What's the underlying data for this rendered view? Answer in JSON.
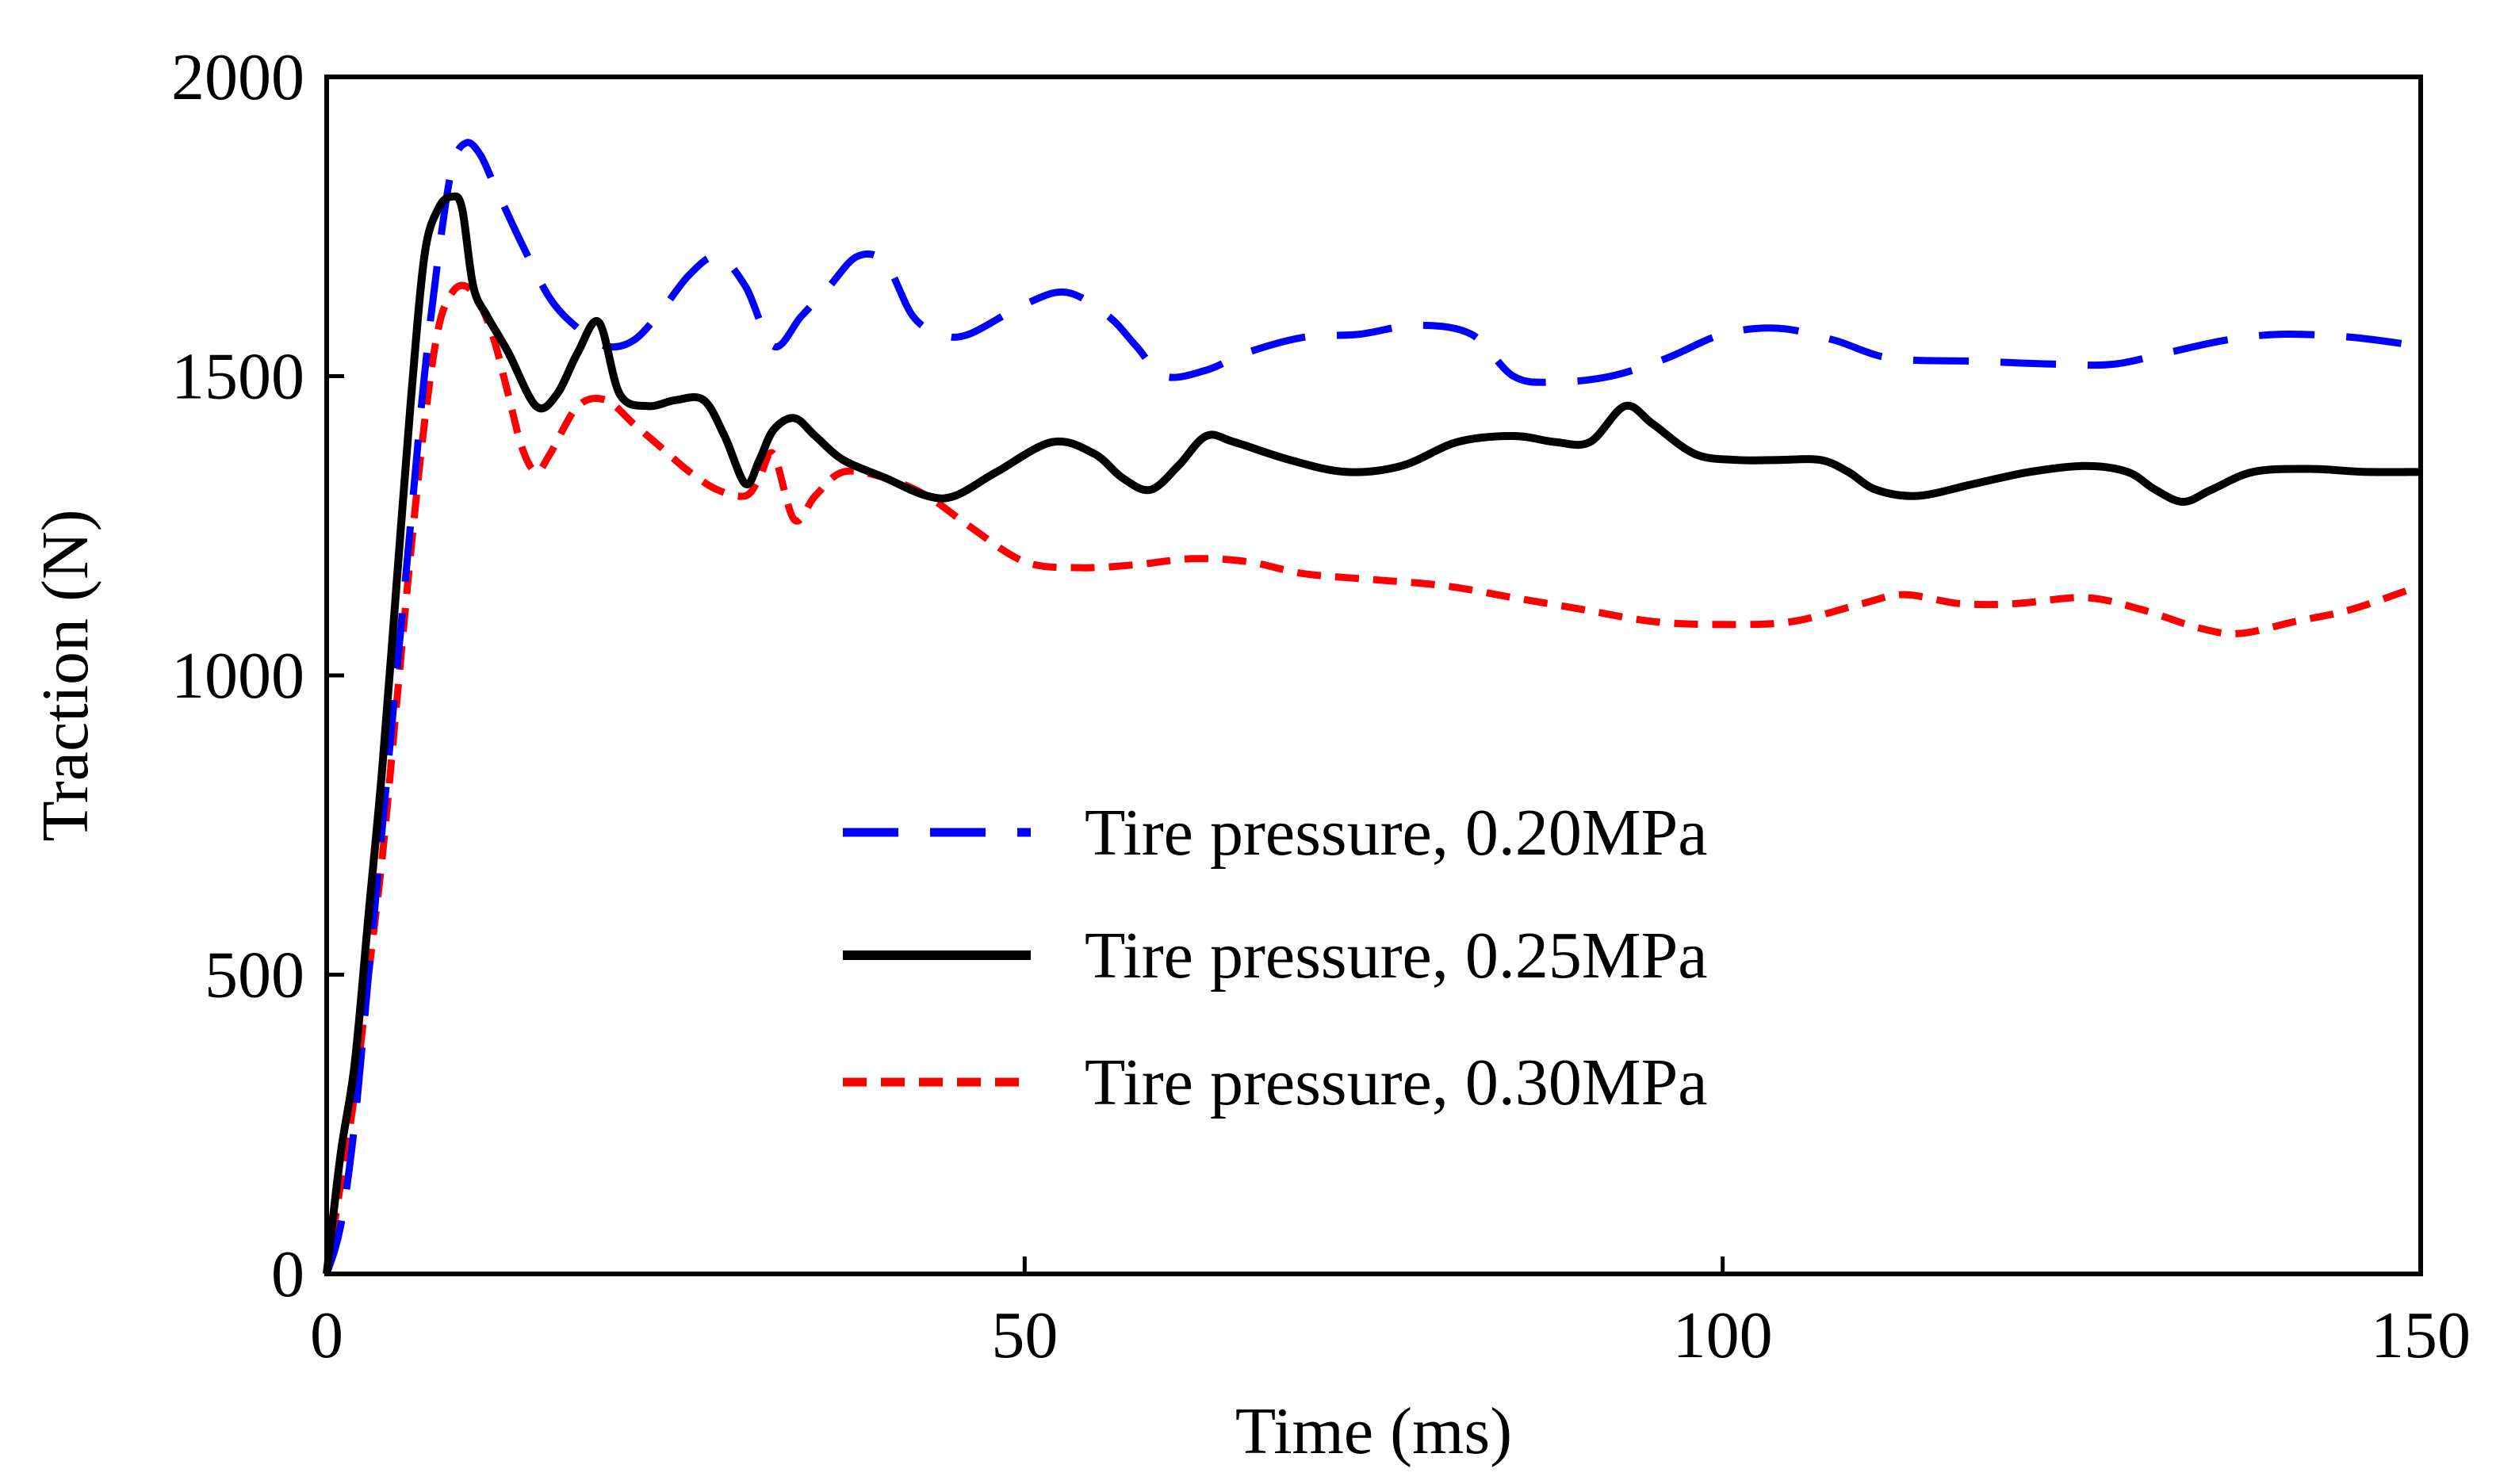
{
  "chart_data": {
    "type": "line",
    "title": "",
    "xlabel": "Time (ms)",
    "ylabel": "Traction (N)",
    "xlim": [
      0,
      150
    ],
    "ylim": [
      0,
      2000
    ],
    "xticks": [
      0,
      50,
      100,
      150
    ],
    "yticks": [
      0,
      500,
      1000,
      1500,
      2000
    ],
    "xtick_labels": [
      "0",
      "50",
      "100",
      "150"
    ],
    "ytick_labels": [
      "0",
      "500",
      "1000",
      "1500",
      "2000"
    ],
    "grid": false,
    "legend_position": "center-right",
    "series": [
      {
        "name": "Tire pressure, 0.20MPa",
        "color": "#0000ff",
        "style": "long-dash",
        "x": [
          0,
          1,
          2,
          3,
          4,
          5,
          6,
          7,
          8,
          9,
          10,
          11,
          12,
          14,
          16,
          18,
          20,
          22,
          24,
          26,
          28,
          30,
          32,
          34,
          36,
          38,
          40,
          42,
          44,
          46,
          50,
          53,
          56,
          58,
          60,
          63,
          66,
          70,
          74,
          78,
          82,
          85,
          88,
          92,
          96,
          100,
          104,
          108,
          112,
          118,
          124,
          128,
          132,
          136,
          140,
          145,
          150
        ],
        "y": [
          0,
          80,
          250,
          500,
          750,
          1000,
          1250,
          1500,
          1700,
          1850,
          1890,
          1870,
          1820,
          1720,
          1630,
          1580,
          1550,
          1560,
          1610,
          1670,
          1700,
          1650,
          1550,
          1600,
          1650,
          1700,
          1690,
          1600,
          1570,
          1570,
          1620,
          1640,
          1600,
          1550,
          1500,
          1510,
          1540,
          1565,
          1570,
          1585,
          1570,
          1500,
          1490,
          1500,
          1530,
          1570,
          1580,
          1560,
          1530,
          1525,
          1520,
          1520,
          1540,
          1560,
          1570,
          1565,
          1550
        ]
      },
      {
        "name": "Tire pressure, 0.25MPa",
        "color": "#000000",
        "style": "solid",
        "x": [
          0,
          1,
          2,
          3,
          4,
          5,
          6,
          7,
          8,
          9,
          9.7,
          10.5,
          11.5,
          13,
          15,
          16.5,
          18,
          19.5,
          21,
          23,
          25,
          27,
          28.5,
          30,
          31,
          32,
          33.5,
          35,
          37,
          40,
          43,
          45,
          48,
          52,
          55,
          57,
          59,
          61,
          63,
          65,
          69,
          73,
          77,
          81,
          85,
          88,
          90.5,
          93,
          95,
          98,
          101,
          104,
          107,
          109,
          111,
          114,
          118,
          122,
          126,
          129,
          131,
          133,
          135,
          138,
          142,
          146,
          150
        ],
        "y": [
          0,
          200,
          350,
          600,
          850,
          1150,
          1450,
          1700,
          1780,
          1800,
          1780,
          1650,
          1600,
          1540,
          1450,
          1470,
          1540,
          1590,
          1470,
          1450,
          1460,
          1460,
          1400,
          1320,
          1360,
          1410,
          1430,
          1400,
          1360,
          1330,
          1300,
          1300,
          1340,
          1390,
          1370,
          1330,
          1310,
          1350,
          1400,
          1390,
          1360,
          1340,
          1350,
          1390,
          1400,
          1390,
          1390,
          1450,
          1420,
          1370,
          1360,
          1360,
          1360,
          1340,
          1310,
          1300,
          1320,
          1340,
          1350,
          1340,
          1310,
          1290,
          1310,
          1340,
          1345,
          1340,
          1340
        ]
      },
      {
        "name": "Tire pressure, 0.30MPa",
        "color": "#ff0000",
        "style": "short-dash",
        "x": [
          0,
          1,
          2,
          3,
          4,
          5,
          6,
          7,
          8,
          9,
          10,
          11,
          12,
          13,
          14,
          15,
          16,
          18,
          20,
          22,
          24,
          26,
          28,
          30,
          31,
          32,
          33.5,
          35,
          37,
          40,
          43,
          46,
          50,
          54,
          58,
          62,
          66,
          70,
          75,
          80,
          85,
          90,
          95,
          100,
          105,
          110,
          113,
          117,
          121,
          126,
          130,
          134,
          137,
          141,
          145,
          150
        ],
        "y": [
          0,
          150,
          300,
          500,
          700,
          950,
          1200,
          1420,
          1580,
          1640,
          1650,
          1620,
          1560,
          1470,
          1380,
          1340,
          1370,
          1450,
          1460,
          1420,
          1380,
          1340,
          1310,
          1300,
          1330,
          1370,
          1260,
          1300,
          1340,
          1330,
          1300,
          1250,
          1190,
          1180,
          1185,
          1195,
          1190,
          1170,
          1160,
          1150,
          1130,
          1110,
          1090,
          1085,
          1090,
          1120,
          1135,
          1120,
          1120,
          1130,
          1110,
          1080,
          1070,
          1090,
          1110,
          1150
        ]
      }
    ]
  }
}
